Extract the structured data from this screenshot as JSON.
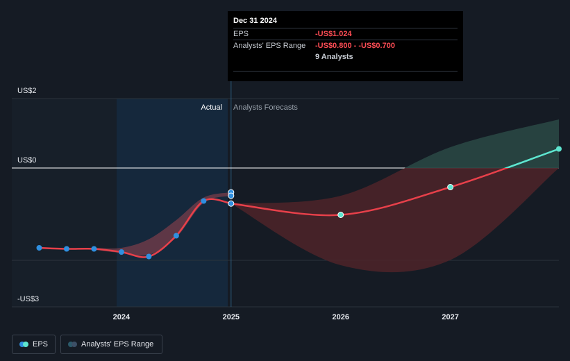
{
  "tooltip": {
    "date": "Dec 31 2024",
    "eps_label": "EPS",
    "eps_value": "-US$1.024",
    "range_label": "Analysts' EPS Range",
    "range_value": "-US$0.800 - -US$0.700",
    "analysts": "9 Analysts"
  },
  "legend": {
    "eps_label": "EPS",
    "range_label": "Analysts' EPS Range"
  },
  "colors": {
    "background": "#151b24",
    "actual_shade": "#152a3f",
    "eps_line": "#e8404a",
    "eps_positive": "#5ee6d0",
    "actual_point": "#2f8fe0",
    "range_negative": "#4a2329",
    "range_positive": "#284542",
    "zero_line": "#ffffff",
    "grid": "#2c333d"
  },
  "chart_data": {
    "type": "line",
    "ylabels": [
      "US$2",
      "US$0",
      "-US$3"
    ],
    "ylim": [
      -3,
      2
    ],
    "xticks": [
      "2024",
      "2025",
      "2026",
      "2027"
    ],
    "xlim": [
      2023.0,
      2027.99
    ],
    "region_labels": {
      "actual": "Actual",
      "forecast": "Analysts Forecasts"
    },
    "series": [
      {
        "name": "EPS",
        "kind": "actual",
        "x": [
          2023.25,
          2023.5,
          2023.75,
          2024.0,
          2024.25,
          2024.5,
          2024.75,
          2025.0
        ],
        "y": [
          -2.3,
          -2.33,
          -2.33,
          -2.42,
          -2.55,
          -1.95,
          -0.95,
          -1.024
        ]
      },
      {
        "name": "EPS",
        "kind": "forecast",
        "x": [
          2025.0,
          2026.0,
          2027.0,
          2027.99
        ],
        "y": [
          -1.024,
          -1.35,
          -0.55,
          0.55
        ]
      }
    ],
    "analyst_points": [
      {
        "x": 2025.0,
        "y": -0.7
      },
      {
        "x": 2025.0,
        "y": -0.8
      }
    ],
    "range_band": {
      "x": [
        2025.0,
        2026.0,
        2027.0,
        2027.99
      ],
      "low": [
        -1.024,
        -2.8,
        -2.65,
        0.0
      ],
      "high": [
        -1.024,
        -0.8,
        0.6,
        1.4
      ]
    },
    "past_band": {
      "x": [
        2023.75,
        2024.0,
        2024.25,
        2024.5,
        2024.75,
        2025.0
      ],
      "low": [
        -2.35,
        -2.45,
        -2.5,
        -2.0,
        -1.0,
        -0.8
      ],
      "high": [
        -2.3,
        -2.3,
        -2.05,
        -1.5,
        -0.85,
        -0.7
      ]
    }
  }
}
